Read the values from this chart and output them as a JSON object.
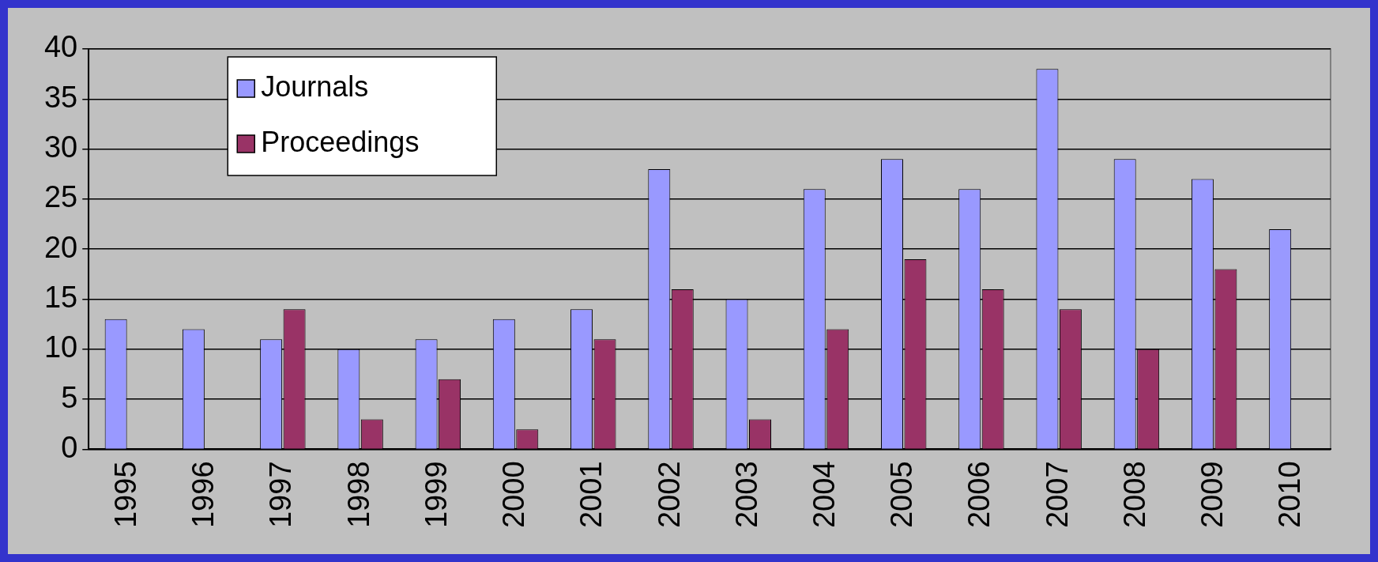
{
  "chart_data": {
    "type": "bar",
    "categories": [
      "1995",
      "1996",
      "1997",
      "1998",
      "1999",
      "2000",
      "2001",
      "2002",
      "2003",
      "2004",
      "2005",
      "2006",
      "2007",
      "2008",
      "2009",
      "2010"
    ],
    "series": [
      {
        "name": "Journals",
        "color": "#9999ff",
        "values": [
          13,
          12,
          11,
          10,
          11,
          13,
          14,
          28,
          15,
          26,
          29,
          26,
          38,
          29,
          27,
          22
        ]
      },
      {
        "name": "Proceedings",
        "color": "#993366",
        "values": [
          null,
          null,
          14,
          3,
          7,
          2,
          11,
          16,
          3,
          12,
          19,
          16,
          14,
          10,
          18,
          null
        ]
      }
    ],
    "ylim": [
      0,
      40
    ],
    "yticks": [
      0,
      5,
      10,
      15,
      20,
      25,
      30,
      35,
      40
    ],
    "grid": "y",
    "legend": "top left"
  }
}
